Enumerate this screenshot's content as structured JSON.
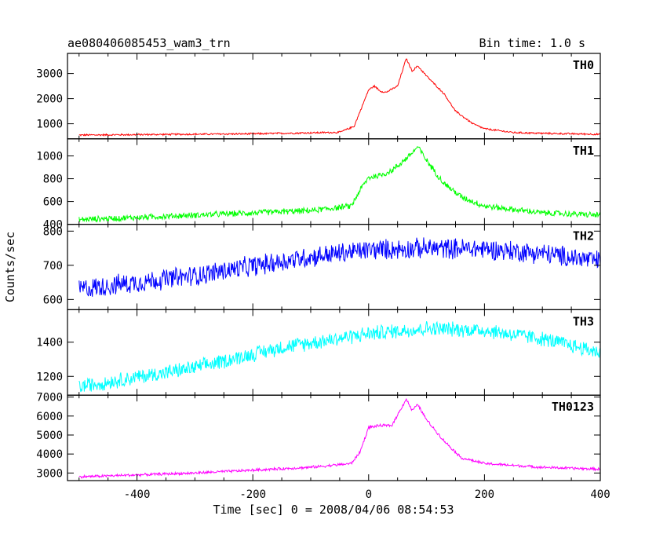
{
  "header": {
    "title": "ae080406085453_wam3_trn",
    "bin_time": "Bin time: 1.0 s"
  },
  "chart_data": {
    "type": "line",
    "xlabel": "Time [sec] 0 = 2008/04/06 08:54:53",
    "ylabel": "Counts/sec",
    "xlim": [
      -520,
      400
    ],
    "x_ticks": [
      -400,
      -200,
      0,
      200,
      400
    ],
    "panels": [
      {
        "name": "TH0",
        "color": "#ff0000",
        "ylim": [
          400,
          3800
        ],
        "y_ticks": [
          1000,
          2000,
          3000
        ],
        "noise": 40,
        "x": [
          -500,
          -200,
          -50,
          -25,
          0,
          10,
          20,
          30,
          50,
          65,
          75,
          85,
          100,
          130,
          150,
          180,
          200,
          250,
          300,
          350,
          400
        ],
        "y": [
          550,
          600,
          660,
          900,
          2350,
          2500,
          2300,
          2250,
          2500,
          3600,
          3100,
          3300,
          2900,
          2200,
          1500,
          1000,
          800,
          650,
          620,
          600,
          580
        ]
      },
      {
        "name": "TH1",
        "color": "#00ff00",
        "ylim": [
          400,
          1150
        ],
        "y_ticks": [
          400,
          600,
          800,
          1000
        ],
        "noise": 30,
        "x": [
          -500,
          -300,
          -100,
          -30,
          -15,
          0,
          20,
          40,
          70,
          85,
          100,
          130,
          160,
          200,
          300,
          400
        ],
        "y": [
          440,
          480,
          520,
          560,
          700,
          810,
          830,
          870,
          1000,
          1080,
          960,
          760,
          640,
          560,
          500,
          480
        ]
      },
      {
        "name": "TH2",
        "color": "#0000ff",
        "ylim": [
          570,
          820
        ],
        "y_ticks": [
          600,
          700,
          800
        ],
        "noise": 34,
        "x": [
          -500,
          -300,
          -100,
          0,
          100,
          200,
          300,
          400
        ],
        "y": [
          630,
          670,
          725,
          745,
          750,
          748,
          735,
          712
        ]
      },
      {
        "name": "TH3",
        "color": "#00ffff",
        "ylim": [
          1090,
          1590
        ],
        "y_ticks": [
          1200,
          1400
        ],
        "noise": 50,
        "x": [
          -500,
          -300,
          -150,
          0,
          100,
          200,
          300,
          400
        ],
        "y": [
          1140,
          1250,
          1370,
          1450,
          1480,
          1470,
          1420,
          1340
        ]
      },
      {
        "name": "TH0123",
        "color": "#ff00ff",
        "ylim": [
          2600,
          7100
        ],
        "y_ticks": [
          3000,
          4000,
          5000,
          6000,
          7000
        ],
        "noise": 80,
        "x": [
          -500,
          -300,
          -100,
          -30,
          -15,
          0,
          20,
          40,
          65,
          75,
          85,
          100,
          130,
          160,
          200,
          300,
          400
        ],
        "y": [
          2800,
          3000,
          3300,
          3500,
          4100,
          5400,
          5500,
          5500,
          6900,
          6300,
          6600,
          5800,
          4700,
          3800,
          3500,
          3300,
          3200
        ]
      }
    ]
  }
}
